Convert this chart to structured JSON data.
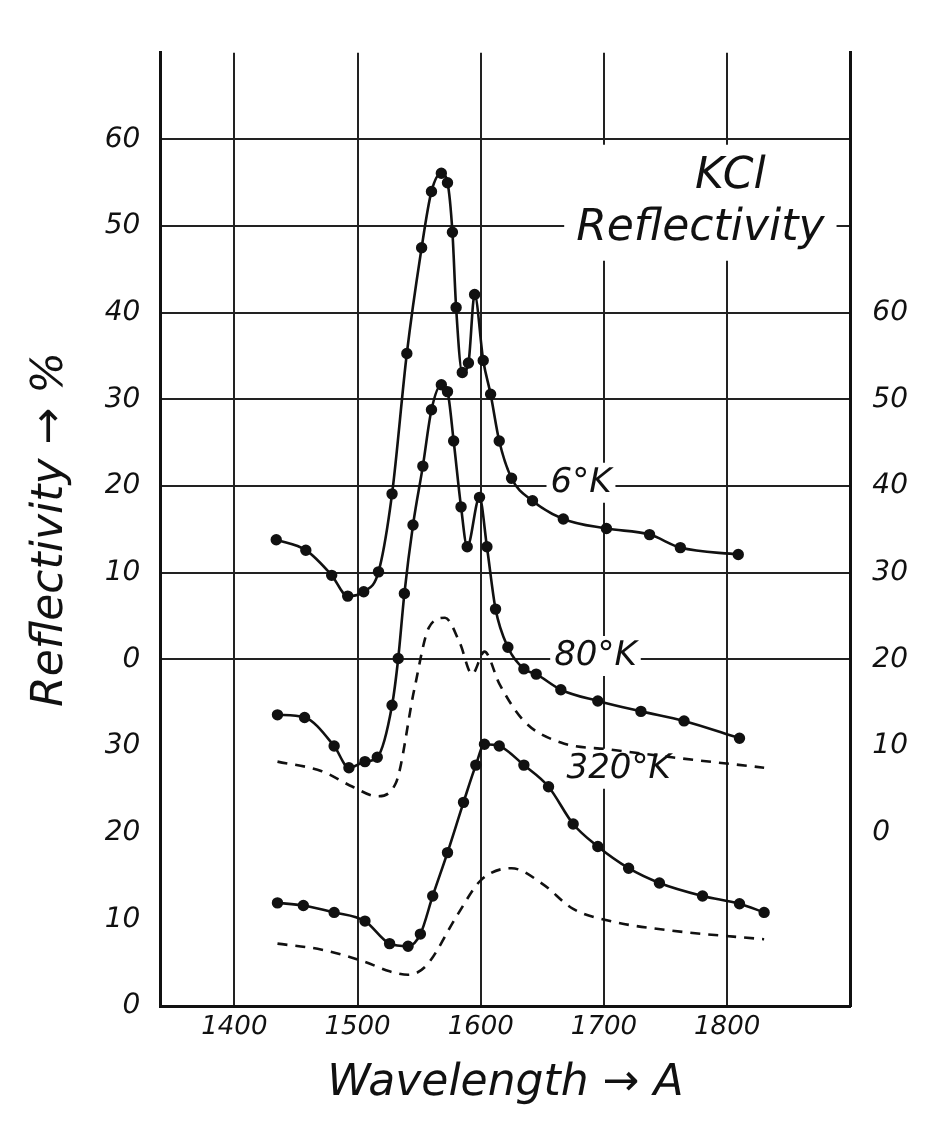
{
  "chart_data": {
    "type": "line",
    "title": "KCl Reflectivity",
    "xlabel": "Wavelength → A",
    "ylabel": "Reflectivity → %",
    "xlim": [
      1340,
      1900
    ],
    "xticks": [
      1400,
      1500,
      1600,
      1700,
      1800
    ],
    "ylim": [
      -40,
      70
    ],
    "yticks": [
      0,
      10,
      20,
      30,
      40,
      50,
      60
    ],
    "y2lim": [
      -20,
      90
    ],
    "y2ticks": [
      0,
      10,
      20,
      30,
      40,
      50,
      60
    ],
    "y3lim": [
      0,
      110
    ],
    "y3ticks": [
      0,
      10,
      20,
      30
    ],
    "grid": true,
    "legend": false,
    "series": [
      {
        "name": "6°K",
        "color": "#111111",
        "marker": "circle",
        "line_style": "solid",
        "x": [
          1434,
          1458,
          1479,
          1492,
          1505,
          1517,
          1528,
          1540,
          1552,
          1560,
          1568,
          1573,
          1577,
          1580,
          1585,
          1590,
          1595,
          1602,
          1608,
          1615,
          1625,
          1642,
          1667,
          1702,
          1737,
          1762,
          1809
        ],
        "values": [
          13.8,
          12.6,
          9.7,
          7.3,
          7.8,
          10.1,
          19.1,
          35.3,
          47.5,
          54,
          56.1,
          55,
          49.3,
          40.6,
          33.1,
          34.2,
          42.1,
          34.5,
          30.6,
          25.2,
          20.9,
          18.3,
          16.2,
          15.1,
          14.4,
          12.9,
          12.1
        ]
      },
      {
        "name": "80°K",
        "axis": "y2",
        "color": "#111111",
        "marker": "circle",
        "line_style": "solid",
        "x": [
          1435,
          1457,
          1481,
          1493,
          1506,
          1516,
          1528,
          1533,
          1538,
          1545,
          1553,
          1560,
          1568,
          1573,
          1578,
          1584,
          1589,
          1599,
          1605,
          1612,
          1622,
          1635,
          1645,
          1665,
          1695,
          1730,
          1765,
          1810
        ],
        "values": [
          13.6,
          13.3,
          10,
          7.5,
          8.2,
          8.7,
          14.7,
          20.1,
          27.6,
          35.5,
          42.3,
          48.8,
          51.7,
          50.9,
          45.2,
          37.6,
          33,
          38.7,
          33,
          25.8,
          21.4,
          18.9,
          18.3,
          16.5,
          15.2,
          14,
          12.9,
          10.9
        ]
      },
      {
        "axis": "y2",
        "color": "#111111",
        "marker": "none",
        "line_style": "dashed",
        "x": [
          1435,
          1471,
          1496,
          1516,
          1531,
          1546,
          1558,
          1571,
          1583,
          1593,
          1603,
          1615,
          1635,
          1665,
          1705,
          1755,
          1830
        ],
        "values": [
          8.2,
          7.1,
          5.3,
          4.2,
          5.7,
          16.5,
          23.7,
          24.8,
          21.9,
          18.3,
          20.9,
          17.2,
          12.9,
          10.4,
          9.6,
          8.7,
          7.5
        ]
      },
      {
        "name": "320°K",
        "axis": "y3",
        "color": "#111111",
        "marker": "circle",
        "line_style": "solid",
        "x": [
          1435,
          1456,
          1481,
          1506,
          1526,
          1541,
          1551,
          1561,
          1573,
          1586,
          1596,
          1603,
          1615,
          1635,
          1655,
          1675,
          1695,
          1720,
          1745,
          1780,
          1810,
          1830
        ],
        "values": [
          11.9,
          11.6,
          10.8,
          9.8,
          7.2,
          6.9,
          8.3,
          12.7,
          17.7,
          23.5,
          27.8,
          30.2,
          30,
          27.8,
          25.3,
          21,
          18.4,
          15.9,
          14.2,
          12.7,
          11.8,
          10.8
        ]
      },
      {
        "axis": "y3",
        "color": "#111111",
        "marker": "none",
        "line_style": "dashed",
        "x": [
          1435,
          1471,
          1506,
          1526,
          1541,
          1556,
          1581,
          1600,
          1625,
          1650,
          1675,
          1705,
          1755,
          1830
        ],
        "values": [
          7.2,
          6.5,
          5.1,
          4,
          3.6,
          4.7,
          10.5,
          14.5,
          15.9,
          14.1,
          11.2,
          9.8,
          8.7,
          7.7
        ]
      }
    ]
  }
}
